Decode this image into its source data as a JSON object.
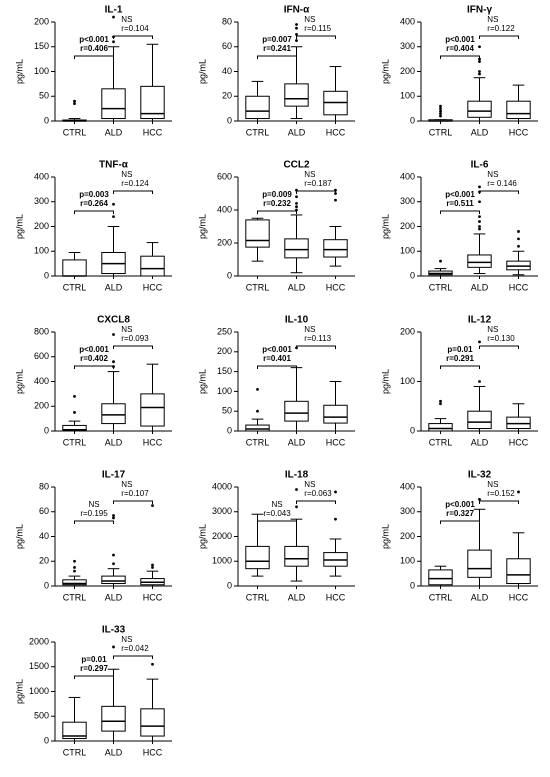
{
  "chart_data": [
    {
      "type": "box",
      "title": "IL-1",
      "y_label": "pg/mL",
      "categories": [
        "CTRL",
        "ALD",
        "HCC"
      ],
      "ylim": [
        0,
        200
      ],
      "yticks": [
        0,
        50,
        100,
        150,
        200
      ],
      "boxes": [
        {
          "min": 0,
          "q1": 0,
          "median": 0,
          "q3": 2,
          "max": 5,
          "outliers": [
            35,
            40
          ]
        },
        {
          "min": 0,
          "q1": 5,
          "median": 25,
          "q3": 65,
          "max": 150,
          "outliers": [
            160,
            170,
            210
          ]
        },
        {
          "min": 0,
          "q1": 5,
          "median": 15,
          "q3": 70,
          "max": 155,
          "outliers": []
        }
      ],
      "annotations": [
        {
          "p": "p<0.001",
          "r": "r=0.406"
        },
        {
          "p": "NS",
          "r": "r=0.104"
        }
      ]
    },
    {
      "type": "box",
      "title": "IFN-α",
      "y_label": "pg/mL",
      "categories": [
        "CTRL",
        "ALD",
        "HCC"
      ],
      "ylim": [
        0,
        80
      ],
      "yticks": [
        0,
        20,
        40,
        60,
        80
      ],
      "boxes": [
        {
          "min": 0,
          "q1": 2,
          "median": 8,
          "q3": 20,
          "max": 32,
          "outliers": []
        },
        {
          "min": 2,
          "q1": 12,
          "median": 18,
          "q3": 30,
          "max": 60,
          "outliers": [
            65,
            70,
            75,
            78
          ]
        },
        {
          "min": 0,
          "q1": 5,
          "median": 15,
          "q3": 24,
          "max": 44,
          "outliers": []
        }
      ],
      "annotations": [
        {
          "p": "p=0.007",
          "r": "r=0.241"
        },
        {
          "p": "NS",
          "r": "r=0.115"
        }
      ]
    },
    {
      "type": "box",
      "title": "IFN-γ",
      "y_label": "pg/mL",
      "categories": [
        "CTRL",
        "ALD",
        "HCC"
      ],
      "ylim": [
        0,
        400
      ],
      "yticks": [
        0,
        100,
        200,
        300,
        400
      ],
      "boxes": [
        {
          "min": 0,
          "q1": 0,
          "median": 0,
          "q3": 5,
          "max": 5,
          "outliers": [
            20,
            30,
            40,
            50,
            60
          ]
        },
        {
          "min": 0,
          "q1": 15,
          "median": 40,
          "q3": 80,
          "max": 175,
          "outliers": [
            190,
            200,
            240,
            250,
            300
          ]
        },
        {
          "min": 0,
          "q1": 10,
          "median": 30,
          "q3": 80,
          "max": 145,
          "outliers": []
        }
      ],
      "annotations": [
        {
          "p": "p<0.001",
          "r": "r=0.404"
        },
        {
          "p": "NS",
          "r": "r=0.122"
        }
      ]
    },
    {
      "type": "box",
      "title": "TNF-α",
      "y_label": "pg/mL",
      "categories": [
        "CTRL",
        "ALD",
        "HCC"
      ],
      "ylim": [
        0,
        400
      ],
      "yticks": [
        0,
        100,
        200,
        300,
        400
      ],
      "boxes": [
        {
          "min": 0,
          "q1": 0,
          "median": 0,
          "q3": 65,
          "max": 95,
          "outliers": []
        },
        {
          "min": 0,
          "q1": 10,
          "median": 50,
          "q3": 95,
          "max": 200,
          "outliers": [
            240,
            290
          ]
        },
        {
          "min": 0,
          "q1": 0,
          "median": 30,
          "q3": 80,
          "max": 135,
          "outliers": []
        }
      ],
      "annotations": [
        {
          "p": "p=0.003",
          "r": "r=0.264"
        },
        {
          "p": "NS",
          "r": "r=0.124"
        }
      ]
    },
    {
      "type": "box",
      "title": "CCL2",
      "y_label": "pg/mL",
      "categories": [
        "CTRL",
        "ALD",
        "HCC"
      ],
      "ylim": [
        0,
        600
      ],
      "yticks": [
        0,
        200,
        400,
        600
      ],
      "boxes": [
        {
          "min": 90,
          "q1": 175,
          "median": 215,
          "q3": 340,
          "max": 350,
          "outliers": []
        },
        {
          "min": 20,
          "q1": 110,
          "median": 160,
          "q3": 225,
          "max": 370,
          "outliers": [
            400,
            420,
            440,
            480,
            520
          ]
        },
        {
          "min": 60,
          "q1": 115,
          "median": 160,
          "q3": 220,
          "max": 300,
          "outliers": [
            460,
            500,
            520
          ]
        }
      ],
      "annotations": [
        {
          "p": "p=0.009",
          "r": "r=0.232"
        },
        {
          "p": "NS",
          "r": "r=0.187"
        }
      ]
    },
    {
      "type": "box",
      "title": "IL-6",
      "y_label": "pg/mL",
      "categories": [
        "CTRL",
        "ALD",
        "HCC"
      ],
      "ylim": [
        0,
        400
      ],
      "yticks": [
        0,
        100,
        200,
        300,
        400
      ],
      "boxes": [
        {
          "min": 0,
          "q1": 5,
          "median": 10,
          "q3": 20,
          "max": 30,
          "outliers": [
            60
          ]
        },
        {
          "min": 10,
          "q1": 35,
          "median": 55,
          "q3": 85,
          "max": 170,
          "outliers": [
            190,
            200,
            220,
            240,
            300,
            340,
            360
          ]
        },
        {
          "min": 5,
          "q1": 25,
          "median": 40,
          "q3": 60,
          "max": 100,
          "outliers": [
            120,
            150,
            180
          ]
        }
      ],
      "annotations": [
        {
          "p": "p<0.001",
          "r": "r=0.511"
        },
        {
          "p": "NS",
          "r": "r= 0.146"
        }
      ]
    },
    {
      "type": "box",
      "title": "CXCL8",
      "y_label": "pg/mL",
      "categories": [
        "CTRL",
        "ALD",
        "HCC"
      ],
      "ylim": [
        0,
        800
      ],
      "yticks": [
        0,
        200,
        400,
        600,
        800
      ],
      "boxes": [
        {
          "min": 0,
          "q1": 0,
          "median": 10,
          "q3": 45,
          "max": 80,
          "outliers": [
            150,
            280
          ]
        },
        {
          "min": 0,
          "q1": 60,
          "median": 130,
          "q3": 220,
          "max": 480,
          "outliers": [
            520,
            560,
            780
          ]
        },
        {
          "min": 0,
          "q1": 40,
          "median": 190,
          "q3": 300,
          "max": 540,
          "outliers": []
        }
      ],
      "annotations": [
        {
          "p": "p<0.001",
          "r": "r=0.402"
        },
        {
          "p": "NS",
          "r": "r=0.093"
        }
      ]
    },
    {
      "type": "box",
      "title": "IL-10",
      "y_label": "pg/mL",
      "categories": [
        "CTRL",
        "ALD",
        "HCC"
      ],
      "ylim": [
        0,
        250
      ],
      "yticks": [
        0,
        50,
        100,
        150,
        200,
        250
      ],
      "boxes": [
        {
          "min": 0,
          "q1": 0,
          "median": 5,
          "q3": 15,
          "max": 30,
          "outliers": [
            50,
            105
          ]
        },
        {
          "min": 0,
          "q1": 25,
          "median": 45,
          "q3": 75,
          "max": 160,
          "outliers": [
            210
          ]
        },
        {
          "min": 0,
          "q1": 20,
          "median": 35,
          "q3": 65,
          "max": 125,
          "outliers": []
        }
      ],
      "annotations": [
        {
          "p": "p<0.001",
          "r": "r=0.401"
        },
        {
          "p": "NS",
          "r": "r=0.113"
        }
      ]
    },
    {
      "type": "box",
      "title": "IL-12",
      "y_label": "pg/mL",
      "categories": [
        "CTRL",
        "ALD",
        "HCC"
      ],
      "ylim": [
        0,
        200
      ],
      "yticks": [
        0,
        100,
        200
      ],
      "boxes": [
        {
          "min": 0,
          "q1": 0,
          "median": 5,
          "q3": 15,
          "max": 25,
          "outliers": [
            55,
            60
          ]
        },
        {
          "min": 0,
          "q1": 5,
          "median": 18,
          "q3": 40,
          "max": 90,
          "outliers": [
            100,
            180
          ]
        },
        {
          "min": 0,
          "q1": 5,
          "median": 15,
          "q3": 28,
          "max": 55,
          "outliers": []
        }
      ],
      "annotations": [
        {
          "p": "p=0.01",
          "r": "r=0.291"
        },
        {
          "p": "NS",
          "r": "r=0.130"
        }
      ]
    },
    {
      "type": "box",
      "title": "IL-17",
      "y_label": "pg/mL",
      "categories": [
        "CTRL",
        "ALD",
        "HCC"
      ],
      "ylim": [
        0,
        80
      ],
      "yticks": [
        0,
        20,
        40,
        60,
        80
      ],
      "boxes": [
        {
          "min": 0,
          "q1": 1,
          "median": 2,
          "q3": 5,
          "max": 8,
          "outliers": [
            12,
            15,
            20
          ]
        },
        {
          "min": 0,
          "q1": 2,
          "median": 4,
          "q3": 8,
          "max": 14,
          "outliers": [
            18,
            25,
            55,
            57
          ]
        },
        {
          "min": 0,
          "q1": 1,
          "median": 3,
          "q3": 6,
          "max": 12,
          "outliers": [
            15,
            17,
            65
          ]
        }
      ],
      "annotations": [
        {
          "p": "NS",
          "r": "r=0.195"
        },
        {
          "p": "NS",
          "r": "r=0.107"
        }
      ]
    },
    {
      "type": "box",
      "title": "IL-18",
      "y_label": "pg/mL",
      "categories": [
        "CTRL",
        "ALD",
        "HCC"
      ],
      "ylim": [
        0,
        4000
      ],
      "yticks": [
        0,
        1000,
        2000,
        3000,
        4000
      ],
      "boxes": [
        {
          "min": 400,
          "q1": 700,
          "median": 1000,
          "q3": 1600,
          "max": 2900,
          "outliers": []
        },
        {
          "min": 200,
          "q1": 800,
          "median": 1100,
          "q3": 1600,
          "max": 2700,
          "outliers": [
            3200,
            3900
          ]
        },
        {
          "min": 400,
          "q1": 800,
          "median": 1050,
          "q3": 1350,
          "max": 1900,
          "outliers": [
            2700,
            3800
          ]
        }
      ],
      "annotations": [
        {
          "p": "NS",
          "r": "r=0.043"
        },
        {
          "p": "NS",
          "r": "r=0.063"
        }
      ]
    },
    {
      "type": "box",
      "title": "IL-32",
      "y_label": "pg/mL",
      "categories": [
        "CTRL",
        "ALD",
        "HCC"
      ],
      "ylim": [
        0,
        400
      ],
      "yticks": [
        0,
        100,
        200,
        300,
        400
      ],
      "boxes": [
        {
          "min": 0,
          "q1": 5,
          "median": 30,
          "q3": 65,
          "max": 80,
          "outliers": []
        },
        {
          "min": 0,
          "q1": 35,
          "median": 70,
          "q3": 145,
          "max": 310,
          "outliers": [
            350
          ]
        },
        {
          "min": 0,
          "q1": 10,
          "median": 45,
          "q3": 110,
          "max": 215,
          "outliers": [
            380
          ]
        }
      ],
      "annotations": [
        {
          "p": "p<0.001",
          "r": "r=0.327"
        },
        {
          "p": "NS",
          "r": "r=0.152"
        }
      ]
    },
    {
      "type": "box",
      "title": "IL-33",
      "y_label": "pg/mL",
      "categories": [
        "CTRL",
        "ALD",
        "HCC"
      ],
      "ylim": [
        0,
        2000
      ],
      "yticks": [
        0,
        500,
        1000,
        1500,
        2000
      ],
      "boxes": [
        {
          "min": 0,
          "q1": 50,
          "median": 100,
          "q3": 380,
          "max": 880,
          "outliers": []
        },
        {
          "min": 0,
          "q1": 200,
          "median": 400,
          "q3": 700,
          "max": 1450,
          "outliers": [
            1900
          ]
        },
        {
          "min": 0,
          "q1": 100,
          "median": 300,
          "q3": 650,
          "max": 1250,
          "outliers": [
            1550
          ]
        }
      ],
      "annotations": [
        {
          "p": "p=0.01",
          "r": "r=0.297"
        },
        {
          "p": "NS",
          "r": "r=0.042"
        }
      ]
    }
  ]
}
